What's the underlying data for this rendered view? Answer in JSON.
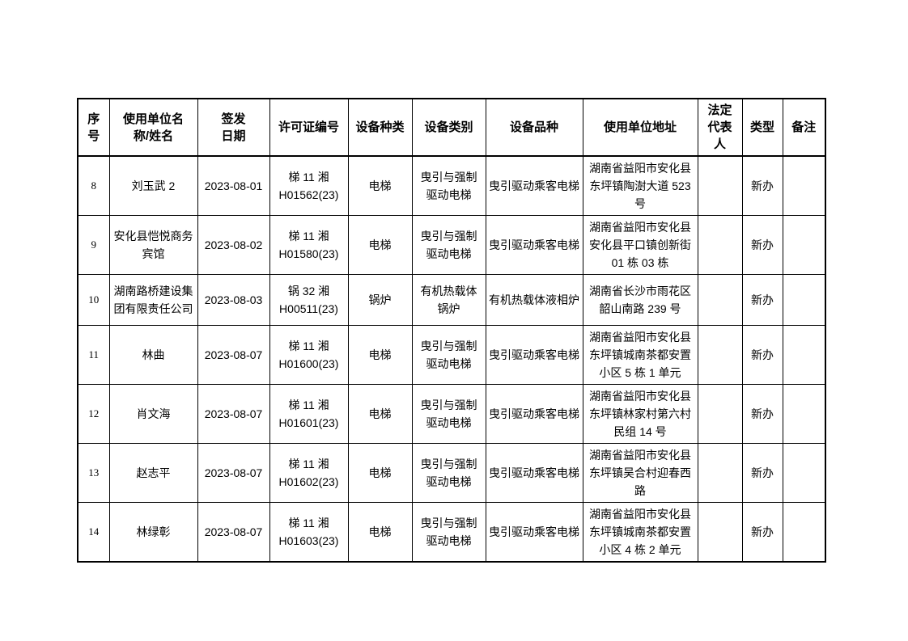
{
  "document": {
    "colors": {
      "page_background": "#ffffff",
      "border": "#000000",
      "text": "#000000"
    },
    "table": {
      "columns": [
        {
          "key": "index",
          "label": "序\n号"
        },
        {
          "key": "name",
          "label": "使用单位名\n称/姓名"
        },
        {
          "key": "issue_date",
          "label": "签发\n日期"
        },
        {
          "key": "license_no",
          "label": "许可证编号"
        },
        {
          "key": "equipment_category",
          "label": "设备种类"
        },
        {
          "key": "equipment_class",
          "label": "设备类别"
        },
        {
          "key": "equipment_variety",
          "label": "设备品种"
        },
        {
          "key": "unit_address",
          "label": "使用单位地址"
        },
        {
          "key": "legal_representative",
          "label": "法定\n代表\n人"
        },
        {
          "key": "type",
          "label": "类型"
        },
        {
          "key": "remarks",
          "label": "备注"
        }
      ],
      "rows": [
        {
          "index": "8",
          "name": "刘玉武 2",
          "issue_date": "2023-08-01",
          "license_no": "梯 11 湘\nH01562(23)",
          "equipment_category": "电梯",
          "equipment_class": "曳引与强制\n驱动电梯",
          "equipment_variety": "曳引驱动乘客电梯",
          "unit_address": "湖南省益阳市安化县\n东坪镇陶澍大道 523\n号",
          "legal_representative": "",
          "type": "新办",
          "remarks": ""
        },
        {
          "index": "9",
          "name": "安化县恺悦商务\n宾馆",
          "issue_date": "2023-08-02",
          "license_no": "梯 11 湘\nH01580(23)",
          "equipment_category": "电梯",
          "equipment_class": "曳引与强制\n驱动电梯",
          "equipment_variety": "曳引驱动乘客电梯",
          "unit_address": "湖南省益阳市安化县\n安化县平口镇创新街\n01 栋 03 栋",
          "legal_representative": "",
          "type": "新办",
          "remarks": ""
        },
        {
          "index": "10",
          "name": "湖南路桥建设集\n团有限责任公司",
          "issue_date": "2023-08-03",
          "license_no": "锅 32 湘\nH00511(23)",
          "equipment_category": "锅炉",
          "equipment_class": "有机热载体\n锅炉",
          "equipment_variety": "有机热载体液相炉",
          "unit_address": "湖南省长沙市雨花区\n韶山南路 239 号",
          "legal_representative": "",
          "type": "新办",
          "remarks": ""
        },
        {
          "index": "11",
          "name": "林曲",
          "issue_date": "2023-08-07",
          "license_no": "梯 11 湘\nH01600(23)",
          "equipment_category": "电梯",
          "equipment_class": "曳引与强制\n驱动电梯",
          "equipment_variety": "曳引驱动乘客电梯",
          "unit_address": "湖南省益阳市安化县\n东坪镇城南茶都安置\n小区 5 栋 1 单元",
          "legal_representative": "",
          "type": "新办",
          "remarks": ""
        },
        {
          "index": "12",
          "name": "肖文海",
          "issue_date": "2023-08-07",
          "license_no": "梯 11 湘\nH01601(23)",
          "equipment_category": "电梯",
          "equipment_class": "曳引与强制\n驱动电梯",
          "equipment_variety": "曳引驱动乘客电梯",
          "unit_address": "湖南省益阳市安化县\n东坪镇林家村第六村\n民组 14 号",
          "legal_representative": "",
          "type": "新办",
          "remarks": ""
        },
        {
          "index": "13",
          "name": "赵志平",
          "issue_date": "2023-08-07",
          "license_no": "梯 11 湘\nH01602(23)",
          "equipment_category": "电梯",
          "equipment_class": "曳引与强制\n驱动电梯",
          "equipment_variety": "曳引驱动乘客电梯",
          "unit_address": "湖南省益阳市安化县\n东坪镇吴合村迎春西\n路",
          "legal_representative": "",
          "type": "新办",
          "remarks": ""
        },
        {
          "index": "14",
          "name": "林绿彰",
          "issue_date": "2023-08-07",
          "license_no": "梯 11 湘\nH01603(23)",
          "equipment_category": "电梯",
          "equipment_class": "曳引与强制\n驱动电梯",
          "equipment_variety": "曳引驱动乘客电梯",
          "unit_address": "湖南省益阳市安化县\n东坪镇城南茶都安置\n小区 4 栋 2 单元",
          "legal_representative": "",
          "type": "新办",
          "remarks": ""
        }
      ]
    }
  }
}
